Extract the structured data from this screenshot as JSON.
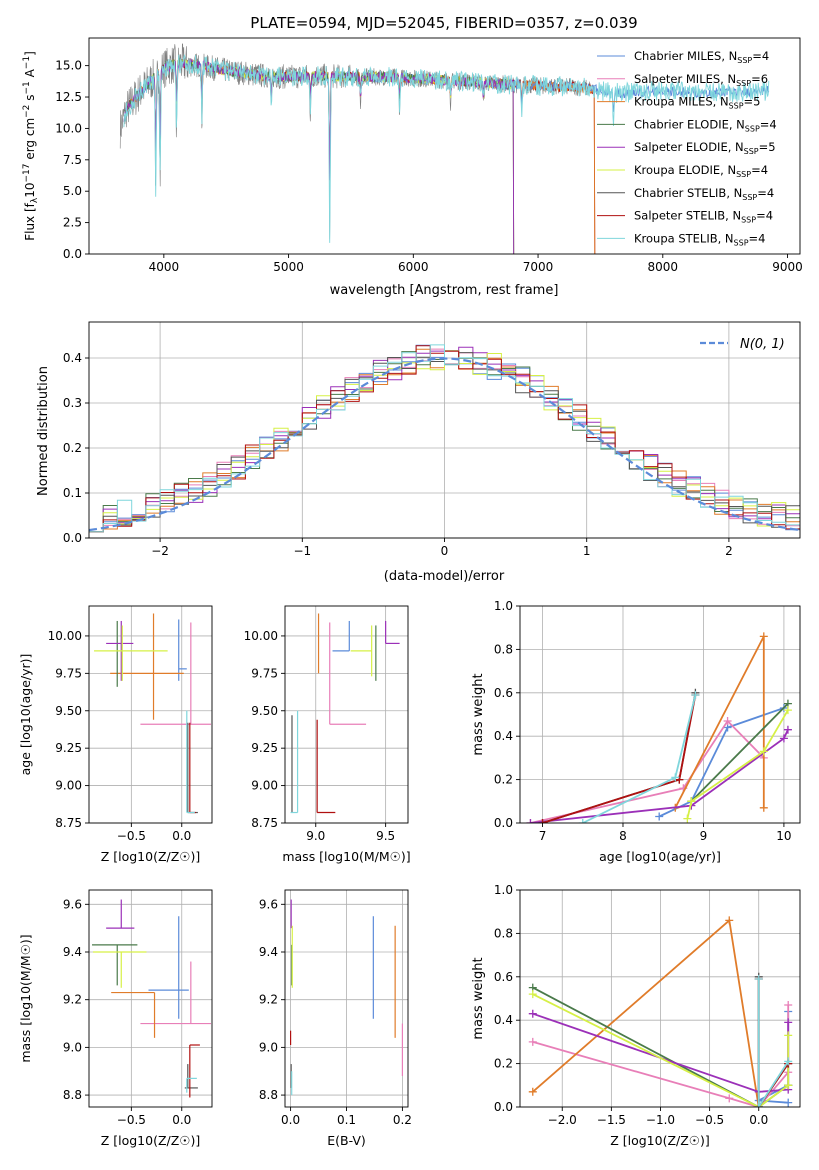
{
  "figure": {
    "title": "PLATE=0594, MJD=52045, FIBERID=0357, z=0.039"
  },
  "colors": {
    "spectrum_data": "#808080",
    "Chabrier_MILES": "#5b8bd9",
    "Salpeter_MILES": "#e87fb8",
    "Kroupa_MILES": "#e07c2a",
    "Chabrier_ELODIE": "#4a7a4a",
    "Salpeter_ELODIE": "#9b30b8",
    "Kroupa_ELODIE": "#d6f046",
    "Chabrier_STELIB": "#555555",
    "Salpeter_STELIB": "#b01010",
    "Kroupa_STELIB": "#7fd6dc"
  },
  "chart_data": [
    {
      "id": "spectrum",
      "type": "line",
      "xlabel": "wavelength [Angstrom, rest frame]",
      "ylabel": "Flux [f_λ10^-17 erg cm^-2 s^-1 A^-1]",
      "xlim": [
        3400,
        9100
      ],
      "ylim": [
        0,
        17.2
      ],
      "xticks": [
        4000,
        5000,
        6000,
        7000,
        8000,
        9000
      ],
      "yticks": [
        0.0,
        2.5,
        5.0,
        7.5,
        10.0,
        12.5,
        15.0
      ],
      "grid": false,
      "legend_position": "top-right",
      "legend": [
        {
          "key": "Chabrier_MILES",
          "label": "Chabrier MILES, N",
          "sub": "SSP",
          "tail": "=4"
        },
        {
          "key": "Salpeter_MILES",
          "label": "Salpeter MILES, N",
          "sub": "SSP",
          "tail": "=6"
        },
        {
          "key": "Kroupa_MILES",
          "label": "Kroupa MILES, N",
          "sub": "SSP",
          "tail": "=5"
        },
        {
          "key": "Chabrier_ELODIE",
          "label": "Chabrier ELODIE, N",
          "sub": "SSP",
          "tail": "=4"
        },
        {
          "key": "Salpeter_ELODIE",
          "label": "Salpeter ELODIE, N",
          "sub": "SSP",
          "tail": "=5"
        },
        {
          "key": "Kroupa_ELODIE",
          "label": "Kroupa ELODIE, N",
          "sub": "SSP",
          "tail": "=4"
        },
        {
          "key": "Chabrier_STELIB",
          "label": "Chabrier STELIB, N",
          "sub": "SSP",
          "tail": "=4"
        },
        {
          "key": "Salpeter_STELIB",
          "label": "Salpeter STELIB, N",
          "sub": "SSP",
          "tail": "=4"
        },
        {
          "key": "Kroupa_STELIB",
          "label": "Kroupa STELIB, N",
          "sub": "SSP",
          "tail": "=4"
        }
      ],
      "continuum": {
        "x": [
          3650,
          3700,
          3800,
          3900,
          4000,
          4100,
          4300,
          4500,
          4800,
          5000,
          5200,
          5500,
          5800,
          6000,
          6300,
          6600,
          7000,
          7300,
          7400,
          7600,
          7800,
          8000,
          8300,
          8600,
          8850
        ],
        "y": [
          10.0,
          11.5,
          12.8,
          13.8,
          14.8,
          15.2,
          15.0,
          14.6,
          14.2,
          14.1,
          14.2,
          14.1,
          14.1,
          14.0,
          13.8,
          13.6,
          13.4,
          13.3,
          13.2,
          12.8,
          12.9,
          13.0,
          12.8,
          12.9,
          13.0
        ]
      },
      "dips": [
        {
          "x": 3935,
          "y": 4.5
        },
        {
          "x": 3970,
          "y": 6.0
        },
        {
          "x": 4102,
          "y": 9.5
        },
        {
          "x": 4305,
          "y": 10.5
        },
        {
          "x": 4861,
          "y": 11.5
        },
        {
          "x": 5175,
          "y": 10.8
        },
        {
          "x": 5330,
          "y": 1.0
        },
        {
          "x": 5577,
          "y": 11.8
        },
        {
          "x": 5890,
          "y": 11.5
        },
        {
          "x": 6300,
          "y": 12.0
        },
        {
          "x": 6563,
          "y": 12.0
        },
        {
          "x": 6870,
          "y": 11.0
        },
        {
          "x": 7605,
          "y": 10.0
        }
      ]
    },
    {
      "id": "residuals",
      "type": "step",
      "xlabel": "(data-model)/error",
      "ylabel": "Normed distribution",
      "xlim": [
        -2.5,
        2.5
      ],
      "ylim": [
        0,
        0.48
      ],
      "xticks": [
        -2,
        -1,
        0,
        1,
        2
      ],
      "yticks": [
        0.0,
        0.1,
        0.2,
        0.3,
        0.4
      ],
      "grid": true,
      "legend": [
        {
          "label": "N(0, 1)",
          "style": "dashed"
        }
      ],
      "legend_position": "top-right",
      "gaussian": {
        "mean": 0,
        "sigma": 1
      }
    },
    {
      "id": "age_vs_Z",
      "type": "errorbar",
      "xlabel": "Z [log10(Z/Z☉)]",
      "ylabel": "age  [log10(age/yr)]",
      "xlim": [
        -0.92,
        0.3
      ],
      "ylim": [
        8.75,
        10.2
      ],
      "xticks": [
        -0.5,
        0.0
      ],
      "yticks": [
        8.75,
        9.0,
        9.25,
        9.5,
        9.75,
        10.0
      ],
      "points": [
        {
          "key": "Chabrier_MILES",
          "x": -0.03,
          "xerr": [
            0.0,
            0.08
          ],
          "y": 9.78,
          "yerr": [
            0.08,
            0.33
          ]
        },
        {
          "key": "Salpeter_MILES",
          "x": 0.09,
          "xerr": [
            0.5,
            0.2
          ],
          "y": 9.41,
          "yerr": [
            0.0,
            0.68
          ]
        },
        {
          "key": "Kroupa_MILES",
          "x": -0.28,
          "xerr": [
            0.43,
            0.3
          ],
          "y": 9.75,
          "yerr": [
            0.31,
            0.4
          ]
        },
        {
          "key": "Chabrier_ELODIE",
          "x": -0.64,
          "xerr": [
            0.0,
            0.0
          ],
          "y": 9.9,
          "yerr": [
            0.24,
            0.2
          ]
        },
        {
          "key": "Salpeter_ELODIE",
          "x": -0.6,
          "xerr": [
            0.15,
            0.12
          ],
          "y": 9.95,
          "yerr": [
            0.25,
            0.15
          ]
        },
        {
          "key": "Kroupa_ELODIE",
          "x": -0.59,
          "xerr": [
            0.28,
            0.45
          ],
          "y": 9.9,
          "yerr": [
            0.2,
            0.17
          ]
        },
        {
          "key": "Chabrier_STELIB",
          "x": 0.06,
          "xerr": [
            0.0,
            0.1
          ],
          "y": 8.82,
          "yerr": [
            0.0,
            0.6
          ]
        },
        {
          "key": "Salpeter_STELIB",
          "x": 0.08,
          "xerr": [
            0.0,
            0.06
          ],
          "y": 8.82,
          "yerr": [
            0.0,
            0.6
          ]
        },
        {
          "key": "Kroupa_STELIB",
          "x": 0.05,
          "xerr": [
            0.0,
            0.08
          ],
          "y": 8.82,
          "yerr": [
            0.0,
            0.68
          ]
        }
      ]
    },
    {
      "id": "age_vs_mass",
      "type": "errorbar",
      "xlabel": "mass [log10(M/M☉)]",
      "ylabel": "",
      "xlim": [
        8.78,
        9.66
      ],
      "ylim": [
        8.75,
        10.2
      ],
      "xticks": [
        9.0,
        9.5
      ],
      "yticks": [
        8.75,
        9.0,
        9.25,
        9.5,
        9.75,
        10.0
      ],
      "points": [
        {
          "key": "Chabrier_MILES",
          "x": 9.24,
          "xerr": [
            0.12,
            0.0
          ],
          "y": 9.9,
          "yerr": [
            0.0,
            0.2
          ]
        },
        {
          "key": "Salpeter_MILES",
          "x": 9.1,
          "xerr": [
            0.0,
            0.26
          ],
          "y": 9.41,
          "yerr": [
            0.0,
            0.68
          ]
        },
        {
          "key": "Kroupa_MILES",
          "x": 9.02,
          "xerr": [
            0.0,
            0.0
          ],
          "y": 9.75,
          "yerr": [
            0.0,
            0.4
          ]
        },
        {
          "key": "Chabrier_ELODIE",
          "x": 9.43,
          "xerr": [
            0.0,
            0.0
          ],
          "y": 9.9,
          "yerr": [
            0.2,
            0.17
          ]
        },
        {
          "key": "Salpeter_ELODIE",
          "x": 9.5,
          "xerr": [
            0.0,
            0.1
          ],
          "y": 9.95,
          "yerr": [
            0.0,
            0.15
          ]
        },
        {
          "key": "Kroupa_ELODIE",
          "x": 9.4,
          "xerr": [
            0.15,
            0.0
          ],
          "y": 9.9,
          "yerr": [
            0.17,
            0.17
          ]
        },
        {
          "key": "Chabrier_STELIB",
          "x": 8.83,
          "xerr": [
            0.0,
            0.0
          ],
          "y": 8.82,
          "yerr": [
            0.0,
            0.65
          ]
        },
        {
          "key": "Salpeter_STELIB",
          "x": 9.01,
          "xerr": [
            0.0,
            0.13
          ],
          "y": 8.82,
          "yerr": [
            0.0,
            0.62
          ]
        },
        {
          "key": "Kroupa_STELIB",
          "x": 8.87,
          "xerr": [
            0.05,
            0.0
          ],
          "y": 8.82,
          "yerr": [
            0.0,
            0.68
          ]
        }
      ]
    },
    {
      "id": "weight_vs_age",
      "type": "line",
      "xlabel": "age  [log10(age/yr)]",
      "ylabel": "mass weight",
      "xlim": [
        6.72,
        10.2
      ],
      "ylim": [
        0,
        1.0
      ],
      "xticks": [
        7,
        8,
        9,
        10
      ],
      "yticks": [
        0.0,
        0.2,
        0.4,
        0.6,
        0.8,
        1.0
      ],
      "grid": true,
      "series": [
        {
          "key": "Chabrier_MILES",
          "x": [
            8.45,
            8.85,
            9.3,
            10.0
          ],
          "y": [
            0.03,
            0.1,
            0.44,
            0.53
          ]
        },
        {
          "key": "Salpeter_MILES",
          "x": [
            6.85,
            8.75,
            9.3,
            9.75
          ],
          "y": [
            0.0,
            0.16,
            0.47,
            0.3
          ]
        },
        {
          "key": "Kroupa_MILES",
          "x": [
            8.65,
            9.75,
            9.75
          ],
          "y": [
            0.07,
            0.86,
            0.07
          ]
        },
        {
          "key": "Chabrier_ELODIE",
          "x": [
            8.85,
            10.05
          ],
          "y": [
            0.1,
            0.55
          ]
        },
        {
          "key": "Salpeter_ELODIE",
          "x": [
            6.85,
            8.85,
            10.0,
            10.05
          ],
          "y": [
            0.0,
            0.08,
            0.39,
            0.43
          ]
        },
        {
          "key": "Kroupa_ELODIE",
          "x": [
            8.8,
            8.85,
            9.75,
            10.05
          ],
          "y": [
            0.02,
            0.1,
            0.33,
            0.52
          ]
        },
        {
          "key": "Chabrier_STELIB",
          "x": [
            7.0,
            8.7,
            8.9
          ],
          "y": [
            0.0,
            0.2,
            0.6
          ]
        },
        {
          "key": "Salpeter_STELIB",
          "x": [
            7.0,
            8.7,
            8.9
          ],
          "y": [
            0.0,
            0.2,
            0.59
          ]
        },
        {
          "key": "Kroupa_STELIB",
          "x": [
            7.5,
            8.65,
            8.9
          ],
          "y": [
            0.0,
            0.21,
            0.59
          ]
        }
      ]
    },
    {
      "id": "mass_vs_Z",
      "type": "errorbar",
      "xlabel": "Z [log10(Z/Z☉)]",
      "ylabel": "mass [log10(M/M☉)]",
      "xlim": [
        -0.92,
        0.3
      ],
      "ylim": [
        8.75,
        9.66
      ],
      "xticks": [
        -0.5,
        0.0
      ],
      "yticks": [
        8.8,
        9.0,
        9.2,
        9.4,
        9.6
      ],
      "points": [
        {
          "key": "Chabrier_MILES",
          "x": -0.03,
          "xerr": [
            0.3,
            0.1
          ],
          "y": 9.24,
          "yerr": [
            0.12,
            0.31
          ]
        },
        {
          "key": "Salpeter_MILES",
          "x": 0.09,
          "xerr": [
            0.5,
            0.2
          ],
          "y": 9.1,
          "yerr": [
            0.0,
            0.26
          ]
        },
        {
          "key": "Kroupa_MILES",
          "x": -0.27,
          "xerr": [
            0.43,
            0.0
          ],
          "y": 9.23,
          "yerr": [
            0.19,
            0.0
          ]
        },
        {
          "key": "Chabrier_ELODIE",
          "x": -0.64,
          "xerr": [
            0.25,
            0.2
          ],
          "y": 9.43,
          "yerr": [
            0.17,
            0.0
          ]
        },
        {
          "key": "Salpeter_ELODIE",
          "x": -0.6,
          "xerr": [
            0.15,
            0.13
          ],
          "y": 9.5,
          "yerr": [
            0.0,
            0.12
          ]
        },
        {
          "key": "Kroupa_ELODIE",
          "x": -0.6,
          "xerr": [
            0.28,
            0.25
          ],
          "y": 9.4,
          "yerr": [
            0.15,
            0.0
          ]
        },
        {
          "key": "Chabrier_STELIB",
          "x": 0.06,
          "xerr": [
            0.03,
            0.1
          ],
          "y": 8.83,
          "yerr": [
            0.0,
            0.1
          ]
        },
        {
          "key": "Salpeter_STELIB",
          "x": 0.08,
          "xerr": [
            0.0,
            0.1
          ],
          "y": 9.01,
          "yerr": [
            0.22,
            0.0
          ]
        },
        {
          "key": "Kroupa_STELIB",
          "x": 0.05,
          "xerr": [
            0.0,
            0.1
          ],
          "y": 8.87,
          "yerr": [
            0.06,
            0.0
          ]
        }
      ]
    },
    {
      "id": "mass_vs_EBV",
      "type": "errorbar",
      "xlabel": "E(B-V)",
      "ylabel": "",
      "xlim": [
        -0.01,
        0.21
      ],
      "ylim": [
        8.75,
        9.66
      ],
      "xticks": [
        0.0,
        0.1,
        0.2
      ],
      "yticks": [
        8.8,
        9.0,
        9.2,
        9.4,
        9.6
      ],
      "points": [
        {
          "key": "Chabrier_MILES",
          "x": 0.148,
          "xerr": [
            0.0,
            0.0
          ],
          "y": 9.34,
          "yerr": [
            0.22,
            0.21
          ]
        },
        {
          "key": "Salpeter_MILES",
          "x": 0.2,
          "xerr": [
            0.0,
            0.0
          ],
          "y": 9.1,
          "yerr": [
            0.22,
            0.0
          ]
        },
        {
          "key": "Kroupa_MILES",
          "x": 0.187,
          "xerr": [
            0.0,
            0.0
          ],
          "y": 9.28,
          "yerr": [
            0.24,
            0.23
          ]
        },
        {
          "key": "Chabrier_ELODIE",
          "x": 0.002,
          "xerr": [
            0.0,
            0.0
          ],
          "y": 9.43,
          "yerr": [
            0.17,
            0.0
          ]
        },
        {
          "key": "Salpeter_ELODIE",
          "x": 0.001,
          "xerr": [
            0.0,
            0.0
          ],
          "y": 9.5,
          "yerr": [
            0.0,
            0.12
          ]
        },
        {
          "key": "Kroupa_ELODIE",
          "x": 0.003,
          "xerr": [
            0.0,
            0.0
          ],
          "y": 9.38,
          "yerr": [
            0.13,
            0.13
          ]
        },
        {
          "key": "Chabrier_STELIB",
          "x": 0.001,
          "xerr": [
            0.0,
            0.0
          ],
          "y": 8.83,
          "yerr": [
            0.0,
            0.1
          ]
        },
        {
          "key": "Salpeter_STELIB",
          "x": 0.0,
          "xerr": [
            0.0,
            0.0
          ],
          "y": 9.01,
          "yerr": [
            0.0,
            0.06
          ]
        },
        {
          "key": "Kroupa_STELIB",
          "x": 0.002,
          "xerr": [
            0.0,
            0.0
          ],
          "y": 8.9,
          "yerr": [
            0.1,
            0.0
          ]
        }
      ]
    },
    {
      "id": "weight_vs_Z",
      "type": "line",
      "xlabel": "Z [log10(Z/Z☉)]",
      "ylabel": "mass weight",
      "xlim": [
        -2.43,
        0.42
      ],
      "ylim": [
        0,
        1.0
      ],
      "xticks": [
        -2.0,
        -1.5,
        -1.0,
        -0.5,
        0.0
      ],
      "yticks": [
        0.0,
        0.2,
        0.4,
        0.6,
        0.8,
        1.0
      ],
      "grid": true,
      "series": [
        {
          "key": "Chabrier_MILES",
          "x": [
            0.3,
            0.0,
            0.3,
            0.3
          ],
          "y": [
            0.02,
            0.03,
            0.1,
            0.44
          ]
        },
        {
          "key": "Salpeter_MILES",
          "x": [
            -2.3,
            -0.3,
            0.0,
            0.3,
            0.3
          ],
          "y": [
            0.3,
            0.04,
            0.0,
            0.16,
            0.47
          ]
        },
        {
          "key": "Kroupa_MILES",
          "x": [
            -2.3,
            -0.3,
            0.0
          ],
          "y": [
            0.07,
            0.86,
            0.0
          ]
        },
        {
          "key": "Chabrier_ELODIE",
          "x": [
            -2.3,
            0.0,
            0.3
          ],
          "y": [
            0.55,
            0.0,
            0.1
          ]
        },
        {
          "key": "Salpeter_ELODIE",
          "x": [
            -2.3,
            0.0,
            0.3,
            0.3
          ],
          "y": [
            0.43,
            0.07,
            0.08,
            0.39
          ]
        },
        {
          "key": "Kroupa_ELODIE",
          "x": [
            -2.3,
            0.0,
            0.3,
            0.3
          ],
          "y": [
            0.52,
            0.0,
            0.1,
            0.33
          ]
        },
        {
          "key": "Chabrier_STELIB",
          "x": [
            0.0,
            0.0,
            0.3
          ],
          "y": [
            0.6,
            0.0,
            0.2
          ]
        },
        {
          "key": "Salpeter_STELIB",
          "x": [
            0.0,
            0.0,
            0.3
          ],
          "y": [
            0.59,
            0.0,
            0.2
          ]
        },
        {
          "key": "Kroupa_STELIB",
          "x": [
            0.0,
            0.0,
            0.3
          ],
          "y": [
            0.59,
            0.0,
            0.21
          ]
        }
      ]
    }
  ]
}
